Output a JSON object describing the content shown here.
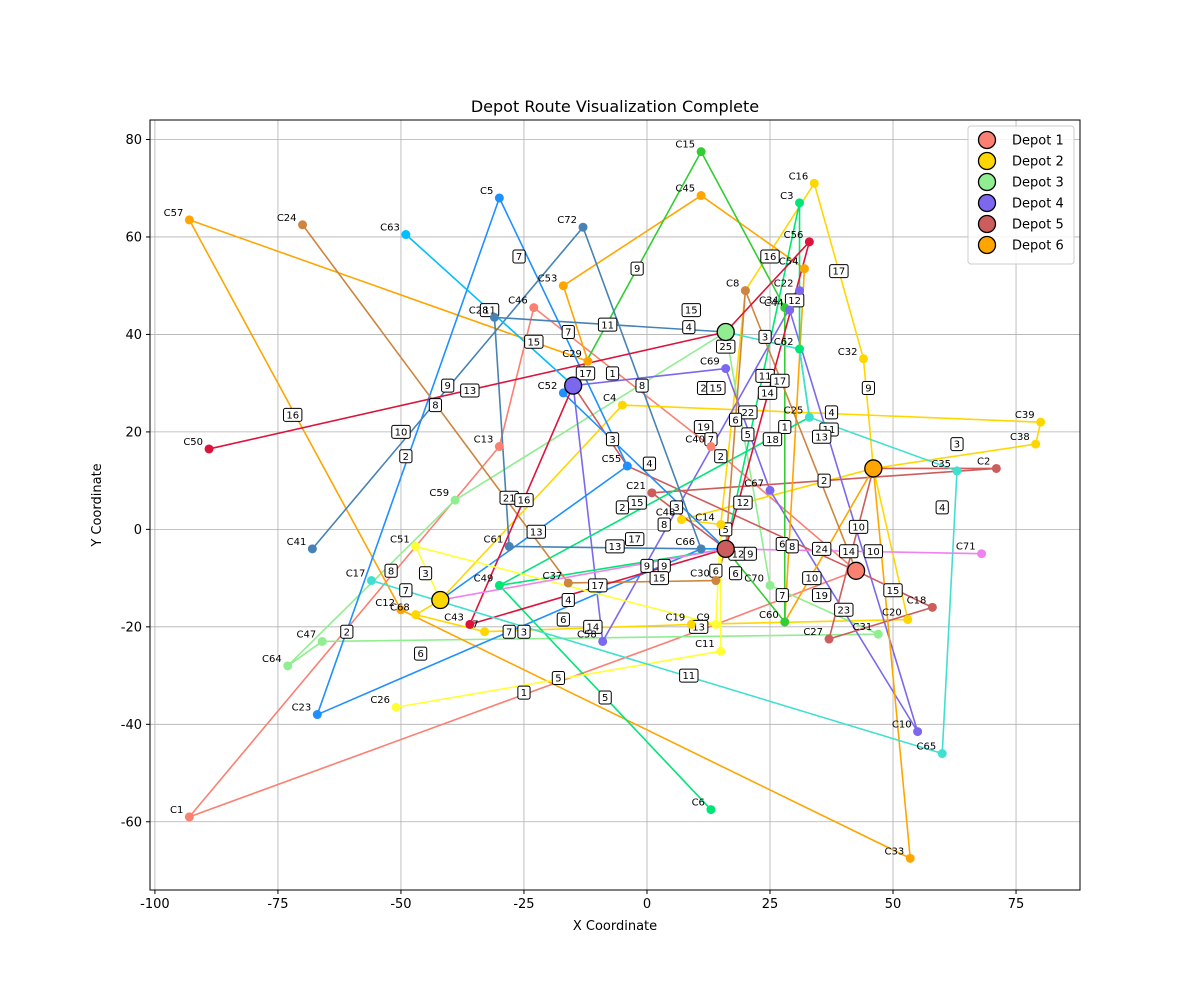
{
  "chart_data": {
    "type": "scatter",
    "title": "Depot Route Visualization Complete",
    "xlabel": "X Coordinate",
    "ylabel": "Y Coordinate",
    "xlim": [
      -101,
      88
    ],
    "ylim": [
      -74,
      84
    ],
    "xticks": [
      -100,
      -75,
      -50,
      -25,
      0,
      25,
      50,
      75
    ],
    "yticks": [
      -60,
      -40,
      -20,
      0,
      20,
      40,
      60,
      80
    ],
    "grid": true,
    "legend_position": "top-right",
    "depots": [
      {
        "name": "Depot 1",
        "x": 42.5,
        "y": -8.5,
        "color": "#fa8072"
      },
      {
        "name": "Depot 2",
        "x": -42,
        "y": -14.5,
        "color": "#ffd700"
      },
      {
        "name": "Depot 3",
        "x": 16,
        "y": 40.5,
        "color": "#90ee90"
      },
      {
        "name": "Depot 4",
        "x": -15,
        "y": 29.5,
        "color": "#7b68ee"
      },
      {
        "name": "Depot 5",
        "x": 16,
        "y": -4,
        "color": "#cd5c5c"
      },
      {
        "name": "Depot 6",
        "x": 46,
        "y": 12.5,
        "color": "#ffa500"
      }
    ],
    "customers": [
      {
        "id": "C1",
        "x": -93,
        "y": -59,
        "color": "#fa8072"
      },
      {
        "id": "C2",
        "x": 71,
        "y": 12.5,
        "color": "#cd5c5c"
      },
      {
        "id": "C3",
        "x": 31,
        "y": 67,
        "color": "#00e676"
      },
      {
        "id": "C4",
        "x": -5,
        "y": 25.5,
        "color": "#ffd700"
      },
      {
        "id": "C5",
        "x": -30,
        "y": 68,
        "color": "#1e90ff"
      },
      {
        "id": "C6",
        "x": 13,
        "y": -57.5,
        "color": "#00e676"
      },
      {
        "id": "C7",
        "x": -33,
        "y": -21,
        "color": "#ffd700"
      },
      {
        "id": "C8",
        "x": 20,
        "y": 49,
        "color": "#cd853f"
      },
      {
        "id": "C9",
        "x": 14,
        "y": -19.5,
        "color": "#ffff33"
      },
      {
        "id": "C10",
        "x": 55,
        "y": -41.5,
        "color": "#7b68ee"
      },
      {
        "id": "C11",
        "x": 15,
        "y": -25,
        "color": "#ffff33"
      },
      {
        "id": "C12",
        "x": -50,
        "y": -16.5,
        "color": "#ffa500"
      },
      {
        "id": "C13",
        "x": -30,
        "y": 17,
        "color": "#fa8072"
      },
      {
        "id": "C14",
        "x": 15,
        "y": 1,
        "color": "#ffd700"
      },
      {
        "id": "C15",
        "x": 11,
        "y": 77.5,
        "color": "#32cd32"
      },
      {
        "id": "C16",
        "x": 34,
        "y": 71,
        "color": "#ffd700"
      },
      {
        "id": "C17",
        "x": -56,
        "y": -10.5,
        "color": "#40e0d0"
      },
      {
        "id": "C18",
        "x": 58,
        "y": -16,
        "color": "#cd5c5c"
      },
      {
        "id": "C19",
        "x": 9,
        "y": -19.5,
        "color": "#ffd700"
      },
      {
        "id": "C20",
        "x": 53,
        "y": -18.5,
        "color": "#ffd700"
      },
      {
        "id": "C21",
        "x": 1,
        "y": 7.5,
        "color": "#cd5c5c"
      },
      {
        "id": "C22",
        "x": 31,
        "y": 49,
        "color": "#7b68ee"
      },
      {
        "id": "C23",
        "x": -67,
        "y": -38,
        "color": "#1e90ff"
      },
      {
        "id": "C24",
        "x": -70,
        "y": 62.5,
        "color": "#cd853f"
      },
      {
        "id": "C25",
        "x": 33,
        "y": 23,
        "color": "#40e0d0"
      },
      {
        "id": "C26",
        "x": -51,
        "y": -36.5,
        "color": "#ffff33"
      },
      {
        "id": "C27",
        "x": 37,
        "y": -22.5,
        "color": "#cd5c5c"
      },
      {
        "id": "C28",
        "x": -31,
        "y": 43.5,
        "color": "#4682b4"
      },
      {
        "id": "C29",
        "x": -12,
        "y": 34.5,
        "color": "#ffa500"
      },
      {
        "id": "C30",
        "x": 14,
        "y": -10.5,
        "color": "#cd853f"
      },
      {
        "id": "C31",
        "x": 47,
        "y": -21.5,
        "color": "#90ee90"
      },
      {
        "id": "C32",
        "x": 44,
        "y": 35,
        "color": "#ffd700"
      },
      {
        "id": "C33",
        "x": 53.5,
        "y": -67.5,
        "color": "#ffa500"
      },
      {
        "id": "C34",
        "x": 28,
        "y": 45.5,
        "color": "#32cd32"
      },
      {
        "id": "C35",
        "x": 63,
        "y": 12,
        "color": "#40e0d0"
      },
      {
        "id": "C37",
        "x": -16,
        "y": -11,
        "color": "#cd853f"
      },
      {
        "id": "C38",
        "x": 79,
        "y": 17.5,
        "color": "#ffd700"
      },
      {
        "id": "C39",
        "x": 80,
        "y": 22,
        "color": "#ffd700"
      },
      {
        "id": "C40",
        "x": 13,
        "y": 17,
        "color": "#fa8072"
      },
      {
        "id": "C41",
        "x": -68,
        "y": -4,
        "color": "#4682b4"
      },
      {
        "id": "C43",
        "x": -36,
        "y": -19.5,
        "color": "#dc143c"
      },
      {
        "id": "C44",
        "x": 29,
        "y": 45,
        "color": "#7b68ee"
      },
      {
        "id": "C45",
        "x": 11,
        "y": 68.5,
        "color": "#ffa500"
      },
      {
        "id": "C46",
        "x": -23,
        "y": 45.5,
        "color": "#fa8072"
      },
      {
        "id": "C47",
        "x": -66,
        "y": -23,
        "color": "#90ee90"
      },
      {
        "id": "C48",
        "x": 7,
        "y": 2,
        "color": "#ffd700"
      },
      {
        "id": "C49",
        "x": -30,
        "y": -11.5,
        "color": "#00e676"
      },
      {
        "id": "C50",
        "x": -89,
        "y": 16.5,
        "color": "#dc143c"
      },
      {
        "id": "C51",
        "x": -47,
        "y": -3.5,
        "color": "#ffff33"
      },
      {
        "id": "C52",
        "x": -17,
        "y": 28,
        "color": "#1e90ff"
      },
      {
        "id": "C53",
        "x": -17,
        "y": 50,
        "color": "#ffa500"
      },
      {
        "id": "C54",
        "x": 32,
        "y": 53.5,
        "color": "#ffa500"
      },
      {
        "id": "C55",
        "x": -4,
        "y": 13,
        "color": "#1e90ff"
      },
      {
        "id": "C56",
        "x": 33,
        "y": 59,
        "color": "#dc143c"
      },
      {
        "id": "C57",
        "x": -93,
        "y": 63.5,
        "color": "#ffa500"
      },
      {
        "id": "C58",
        "x": -9,
        "y": -23,
        "color": "#7b68ee"
      },
      {
        "id": "C59",
        "x": -39,
        "y": 6,
        "color": "#90ee90"
      },
      {
        "id": "C60",
        "x": 28,
        "y": -19,
        "color": "#32cd32"
      },
      {
        "id": "C61",
        "x": -28,
        "y": -3.5,
        "color": "#4682b4"
      },
      {
        "id": "C62",
        "x": 31,
        "y": 37,
        "color": "#00e676"
      },
      {
        "id": "C63",
        "x": -49,
        "y": 60.5,
        "color": "#00bfff"
      },
      {
        "id": "C64",
        "x": -73,
        "y": -28,
        "color": "#90ee90"
      },
      {
        "id": "C65",
        "x": 60,
        "y": -46,
        "color": "#40e0d0"
      },
      {
        "id": "C66",
        "x": 11,
        "y": -4,
        "color": "#4682b4"
      },
      {
        "id": "C67",
        "x": 25,
        "y": 8,
        "color": "#7b68ee"
      },
      {
        "id": "C68",
        "x": -47,
        "y": -17.5,
        "color": "#ffd700"
      },
      {
        "id": "C69",
        "x": 16,
        "y": 33,
        "color": "#7b68ee"
      },
      {
        "id": "C70",
        "x": 25,
        "y": -11.5,
        "color": "#90ee90"
      },
      {
        "id": "C71",
        "x": 68,
        "y": -5,
        "color": "#ee82ee"
      },
      {
        "id": "C72",
        "x": -13,
        "y": 62,
        "color": "#4682b4"
      }
    ],
    "routes": [
      {
        "color": "#fa8072",
        "stops": [
          "Depot 1",
          "C40",
          "C46",
          "C13",
          "C1",
          "C9",
          "Depot 1"
        ]
      },
      {
        "color": "#ffd700",
        "stops": [
          "Depot 2",
          "C68",
          "C7",
          "C19",
          "C20",
          "Depot 6",
          "C38",
          "C39",
          "C4",
          "Depot 2"
        ]
      },
      {
        "color": "#ffd700",
        "stops": [
          "Depot 6",
          "C32",
          "C16",
          "C8",
          "C14",
          "C48",
          "Depot 6"
        ]
      },
      {
        "color": "#90ee90",
        "stops": [
          "Depot 3",
          "C59",
          "C64",
          "C47",
          "C31",
          "C70",
          "Depot 3"
        ]
      },
      {
        "color": "#7b68ee",
        "stops": [
          "Depot 4",
          "C69",
          "C67",
          "C10",
          "C44",
          "C22",
          "C58",
          "Depot 4"
        ]
      },
      {
        "color": "#cd5c5c",
        "stops": [
          "Depot 5",
          "C21",
          "C2",
          "Depot 6",
          "C27",
          "C18",
          "Depot 1",
          "C55",
          "Depot 4"
        ]
      },
      {
        "color": "#ffa500",
        "stops": [
          "Depot 6",
          "C33",
          "C12",
          "C57",
          "C29",
          "C53",
          "C45",
          "C54",
          "C60",
          "Depot 6"
        ]
      },
      {
        "color": "#1e90ff",
        "stops": [
          "Depot 2",
          "C55",
          "C5",
          "C23",
          "C66",
          "Depot 5",
          "C52"
        ]
      },
      {
        "color": "#00e676",
        "stops": [
          "Depot 5",
          "C3",
          "C62",
          "C25",
          "C49",
          "C6",
          "C49",
          "Depot 5"
        ]
      },
      {
        "color": "#32cd32",
        "stops": [
          "Depot 4",
          "C15",
          "C34",
          "C60",
          "Depot 5"
        ]
      },
      {
        "color": "#4682b4",
        "stops": [
          "C41",
          "C72",
          "C66",
          "C61",
          "C28",
          "Depot 3"
        ]
      },
      {
        "color": "#cd853f",
        "stops": [
          "C24",
          "C37",
          "C30",
          "Depot 5",
          "C8",
          "Depot 1"
        ]
      },
      {
        "color": "#dc143c",
        "stops": [
          "C50",
          "Depot 3",
          "C56",
          "Depot 5",
          "C43",
          "Depot 4"
        ]
      },
      {
        "color": "#ffff33",
        "stops": [
          "C26",
          "C11",
          "C14",
          "C9",
          "C51",
          "Depot 2"
        ]
      },
      {
        "color": "#40e0d0",
        "stops": [
          "C17",
          "C65",
          "C35",
          "C25",
          "C62",
          "Depot 3"
        ]
      },
      {
        "color": "#00bfff",
        "stops": [
          "C63",
          "Depot 4",
          "C52"
        ]
      },
      {
        "color": "#ee82ee",
        "stops": [
          "Depot 2",
          "Depot 5",
          "C71"
        ]
      }
    ],
    "order_labels": [
      {
        "text": "16",
        "x": 25,
        "y": 56
      },
      {
        "text": "17",
        "x": 39,
        "y": 53
      },
      {
        "text": "7",
        "x": -26,
        "y": 56
      },
      {
        "text": "9",
        "x": -2,
        "y": 53.5
      },
      {
        "text": "12",
        "x": 30,
        "y": 47
      },
      {
        "text": "11",
        "x": -32,
        "y": 45
      },
      {
        "text": "15",
        "x": 9,
        "y": 45
      },
      {
        "text": "11",
        "x": -8,
        "y": 42
      },
      {
        "text": "4",
        "x": 8.5,
        "y": 41.5
      },
      {
        "text": "7",
        "x": -16,
        "y": 40.5
      },
      {
        "text": "15",
        "x": -23,
        "y": 38.5
      },
      {
        "text": "3",
        "x": 24,
        "y": 39.5
      },
      {
        "text": "25",
        "x": 16,
        "y": 37.5
      },
      {
        "text": "17",
        "x": -12.5,
        "y": 32
      },
      {
        "text": "1",
        "x": -7,
        "y": 32
      },
      {
        "text": "11",
        "x": 24,
        "y": 31.5
      },
      {
        "text": "17",
        "x": 27,
        "y": 30.5
      },
      {
        "text": "8",
        "x": -1,
        "y": 29.5
      },
      {
        "text": "2",
        "x": 11.5,
        "y": 29
      },
      {
        "text": "15",
        "x": 14,
        "y": 29
      },
      {
        "text": "14",
        "x": 24.5,
        "y": 28
      },
      {
        "text": "9",
        "x": -40.5,
        "y": 29.5
      },
      {
        "text": "13",
        "x": -36,
        "y": 28.5
      },
      {
        "text": "8",
        "x": -43,
        "y": 25.5
      },
      {
        "text": "16",
        "x": -72,
        "y": 23.5
      },
      {
        "text": "9",
        "x": 45,
        "y": 29
      },
      {
        "text": "22",
        "x": 20.5,
        "y": 24
      },
      {
        "text": "6",
        "x": 18,
        "y": 22.5
      },
      {
        "text": "4",
        "x": 37.5,
        "y": 24
      },
      {
        "text": "1",
        "x": 28,
        "y": 21
      },
      {
        "text": "11",
        "x": 37,
        "y": 20.5
      },
      {
        "text": "19",
        "x": 11.5,
        "y": 21
      },
      {
        "text": "13",
        "x": 35.5,
        "y": 19
      },
      {
        "text": "5",
        "x": 20.5,
        "y": 19.5
      },
      {
        "text": "18",
        "x": 25.5,
        "y": 18.5
      },
      {
        "text": "7",
        "x": 13,
        "y": 18.5
      },
      {
        "text": "3",
        "x": 63,
        "y": 17.5
      },
      {
        "text": "10",
        "x": -50,
        "y": 20
      },
      {
        "text": "2",
        "x": 15,
        "y": 15
      },
      {
        "text": "2",
        "x": -49,
        "y": 15
      },
      {
        "text": "3",
        "x": -7,
        "y": 18.5
      },
      {
        "text": "4",
        "x": 0.5,
        "y": 13.5
      },
      {
        "text": "2",
        "x": 36,
        "y": 10
      },
      {
        "text": "21",
        "x": -28,
        "y": 6.5
      },
      {
        "text": "16",
        "x": -25,
        "y": 6
      },
      {
        "text": "15",
        "x": -2,
        "y": 5.5
      },
      {
        "text": "2",
        "x": -5,
        "y": 4.5
      },
      {
        "text": "12",
        "x": 19.5,
        "y": 5.5
      },
      {
        "text": "3",
        "x": 6,
        "y": 4.5
      },
      {
        "text": "4",
        "x": 60,
        "y": 4.5
      },
      {
        "text": "8",
        "x": 3.5,
        "y": 1
      },
      {
        "text": "5",
        "x": 16,
        "y": 0
      },
      {
        "text": "10",
        "x": 43,
        "y": 0.5
      },
      {
        "text": "13",
        "x": -22.5,
        "y": -0.5
      },
      {
        "text": "17",
        "x": -2.5,
        "y": -2
      },
      {
        "text": "13",
        "x": -6.5,
        "y": -3.5
      },
      {
        "text": "6",
        "x": 27.5,
        "y": -3
      },
      {
        "text": "8",
        "x": 29.5,
        "y": -3.5
      },
      {
        "text": "24",
        "x": 35.5,
        "y": -4
      },
      {
        "text": "14",
        "x": 41,
        "y": -4.5
      },
      {
        "text": "10",
        "x": 46,
        "y": -4.5
      },
      {
        "text": "12",
        "x": 18.5,
        "y": -5
      },
      {
        "text": "9",
        "x": 21,
        "y": -5
      },
      {
        "text": "8",
        "x": -52,
        "y": -8.5
      },
      {
        "text": "3",
        "x": -45,
        "y": -9
      },
      {
        "text": "9",
        "x": 0,
        "y": -7.5
      },
      {
        "text": "9",
        "x": 3.5,
        "y": -7.5
      },
      {
        "text": "6",
        "x": 14,
        "y": -8.5
      },
      {
        "text": "6",
        "x": 18,
        "y": -9
      },
      {
        "text": "15",
        "x": 2.5,
        "y": -10
      },
      {
        "text": "10",
        "x": 33.5,
        "y": -10
      },
      {
        "text": "17",
        "x": -10,
        "y": -11.5
      },
      {
        "text": "7",
        "x": -49,
        "y": -12.5
      },
      {
        "text": "4",
        "x": -16,
        "y": -14.5
      },
      {
        "text": "15",
        "x": 50,
        "y": -12.5
      },
      {
        "text": "7",
        "x": 27.5,
        "y": -13.5
      },
      {
        "text": "19",
        "x": 35.5,
        "y": -13.5
      },
      {
        "text": "23",
        "x": 40,
        "y": -16.5
      },
      {
        "text": "6",
        "x": -17,
        "y": -18.5
      },
      {
        "text": "14",
        "x": -11,
        "y": -20
      },
      {
        "text": "13",
        "x": 10.5,
        "y": -20
      },
      {
        "text": "7",
        "x": -28,
        "y": -21
      },
      {
        "text": "3",
        "x": -25,
        "y": -21
      },
      {
        "text": "2",
        "x": -61,
        "y": -21
      },
      {
        "text": "6",
        "x": -46,
        "y": -25.5
      },
      {
        "text": "11",
        "x": 8.5,
        "y": -30
      },
      {
        "text": "5",
        "x": -18,
        "y": -30.5
      },
      {
        "text": "1",
        "x": -25,
        "y": -33.5
      },
      {
        "text": "5",
        "x": -8.5,
        "y": -34.5
      }
    ]
  }
}
